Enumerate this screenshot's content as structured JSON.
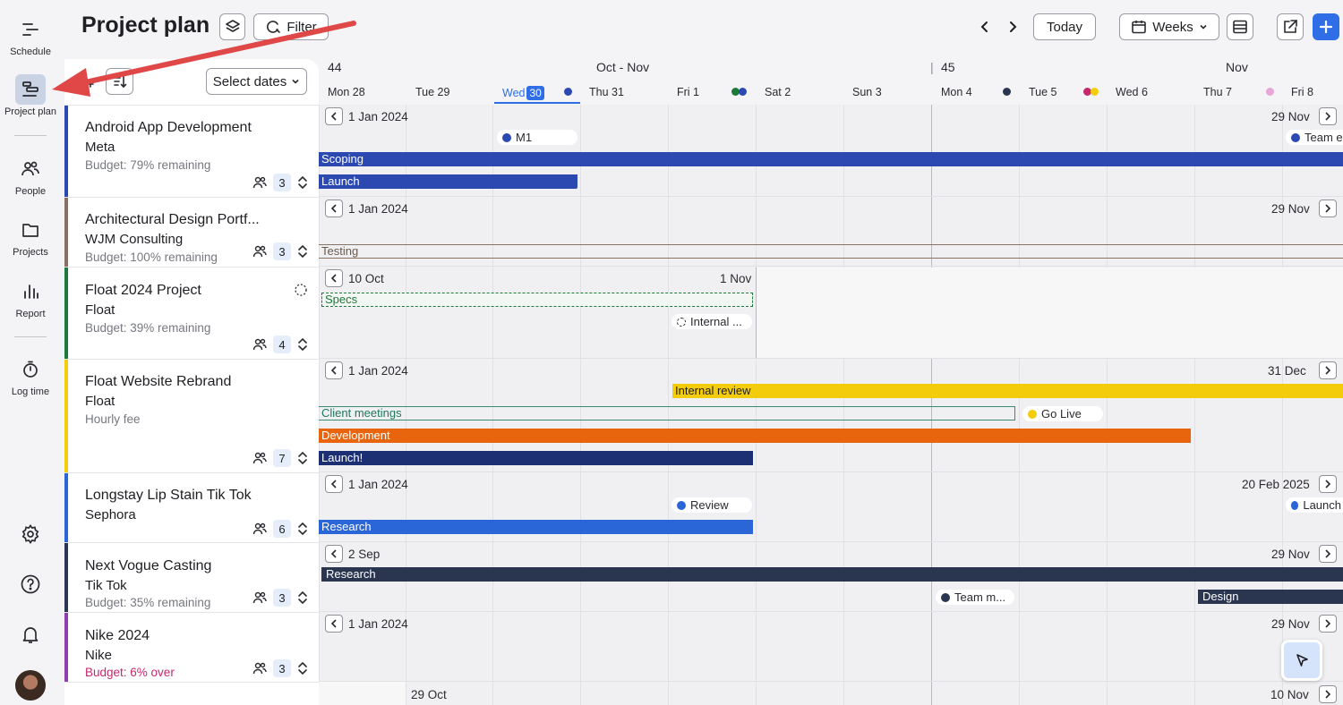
{
  "nav": {
    "items": [
      {
        "label": "Schedule",
        "icon": "schedule-icon"
      },
      {
        "label": "Project plan",
        "icon": "project-plan-icon",
        "active": true
      },
      {
        "label": "People",
        "icon": "people-icon"
      },
      {
        "label": "Projects",
        "icon": "folder-icon"
      },
      {
        "label": "Report",
        "icon": "report-icon"
      },
      {
        "label": "Log time",
        "icon": "stopwatch-icon"
      }
    ],
    "bottom_icons": [
      "gear-icon",
      "help-icon",
      "bell-icon",
      "avatar"
    ]
  },
  "header": {
    "title": "Project plan",
    "filter_label": "Filter",
    "today_label": "Today",
    "view_label": "Weeks"
  },
  "panel": {
    "select_dates_label": "Select dates",
    "projects": [
      {
        "name": "Android App Development",
        "client": "Meta",
        "budget": "Budget: 79% remaining",
        "count": "3",
        "color": "#2c49b1"
      },
      {
        "name": "Architectural Design Portf...",
        "client": "WJM Consulting",
        "budget": "Budget: 100% remaining",
        "count": "3",
        "color": "#8a7262"
      },
      {
        "name": "Float 2024 Project",
        "client": "Float",
        "budget": "Budget: 39% remaining",
        "count": "4",
        "color": "#1e7a3a"
      },
      {
        "name": "Float Website Rebrand",
        "client": "Float",
        "budget": "Hourly fee",
        "count": "7",
        "color": "#f3cc0c"
      },
      {
        "name": "Longstay Lip Stain Tik Tok",
        "client": "Sephora",
        "budget": "",
        "count": "6",
        "color": "#2a66d8"
      },
      {
        "name": "Next Vogue Casting",
        "client": "Tik Tok",
        "budget": "Budget: 35% remaining",
        "count": "3",
        "color": "#2a3550"
      },
      {
        "name": "Nike 2024",
        "client": "Nike",
        "budget": "Budget: 6% over",
        "count": "3",
        "color": "#8e3fae"
      }
    ]
  },
  "timeline": {
    "weeks": [
      {
        "label": "44"
      },
      {
        "label": "Oct - Nov"
      },
      {
        "label": "45"
      },
      {
        "label": "Nov"
      }
    ],
    "days": [
      "Mon 28",
      "Tue 29",
      "Wed",
      "Thu 31",
      "Fri 1",
      "Sat 2",
      "Sun 3",
      "Mon 4",
      "Tue 5",
      "Wed 6",
      "Thu 7",
      "Fri 8"
    ],
    "today_num": "30",
    "rows": [
      {
        "start": "1 Jan 2024",
        "end": "29 Nov",
        "phases": [
          {
            "label": "Scoping"
          },
          {
            "label": "Launch"
          }
        ],
        "milestones": [
          {
            "label": "M1"
          },
          {
            "label": "Team e"
          }
        ]
      },
      {
        "start": "1 Jan 2024",
        "end": "29 Nov",
        "phases": [
          {
            "label": "Testing"
          }
        ]
      },
      {
        "start": "10 Oct",
        "end": "1 Nov",
        "phases": [
          {
            "label": "Specs"
          }
        ],
        "milestones": [
          {
            "label": "Internal ..."
          }
        ]
      },
      {
        "start": "1 Jan 2024",
        "end": "31 Dec",
        "phases": [
          {
            "label": "Internal review"
          },
          {
            "label": "Client meetings"
          },
          {
            "label": "Development"
          },
          {
            "label": "Launch!"
          }
        ],
        "milestones": [
          {
            "label": "Go Live"
          }
        ]
      },
      {
        "start": "1 Jan 2024",
        "end": "20 Feb 2025",
        "phases": [
          {
            "label": "Research"
          }
        ],
        "milestones": [
          {
            "label": "Review"
          },
          {
            "label": "Launch"
          }
        ]
      },
      {
        "start": "2 Sep",
        "end": "29 Nov",
        "phases": [
          {
            "label": "Research"
          },
          {
            "label": "Design"
          }
        ],
        "milestones": [
          {
            "label": "Team m..."
          }
        ]
      },
      {
        "start": "1 Jan 2024",
        "end": "29 Nov"
      },
      {
        "start": "29 Oct",
        "end": "10 Nov"
      }
    ]
  },
  "colors": {
    "accent": "#2f6ee6",
    "annotation_arrow": "#e04848"
  }
}
